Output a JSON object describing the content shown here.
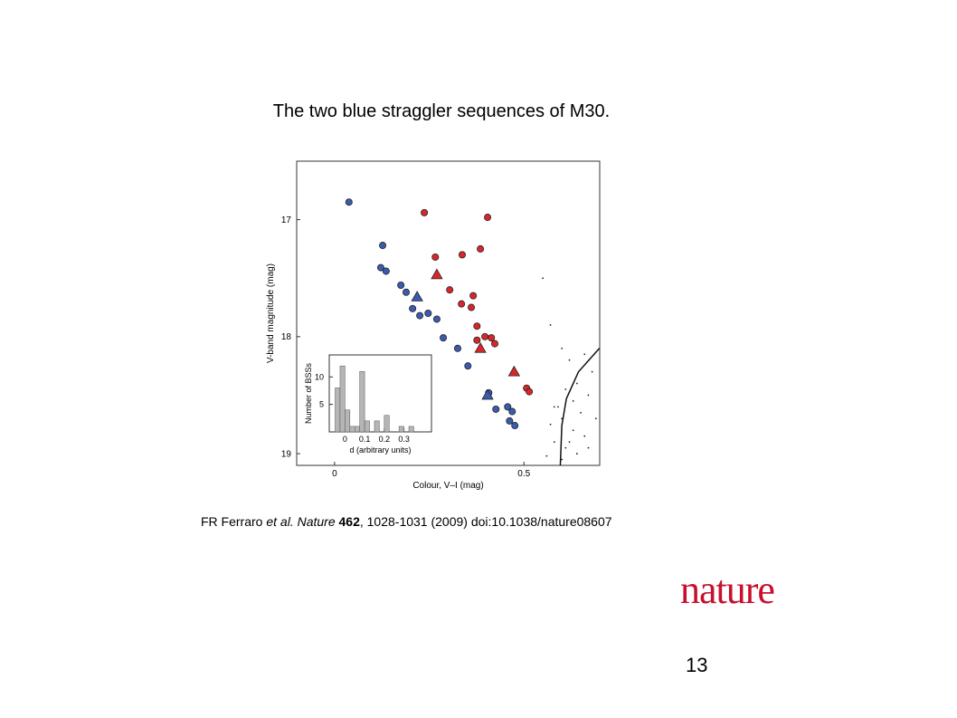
{
  "slide": {
    "title": "The two blue straggler sequences of M30.",
    "citation": [
      "FR Ferraro ",
      "et al. Nature",
      " ",
      "462",
      ", 1028-1031 (2009) doi:10.1038/nature08607"
    ],
    "logo": "nature",
    "page_number": "13"
  },
  "chart_data": [
    {
      "type": "scatter",
      "x_label": "Colour, V–I (mag)",
      "y_label": "V-band magnitude (mag)",
      "xlim": [
        -0.1,
        0.7
      ],
      "ylim": [
        16.5,
        19.1
      ],
      "y_inverted": true,
      "xticks": [
        0,
        0.5
      ],
      "yticks": [
        17,
        18,
        19
      ],
      "series": [
        {
          "color": "#3a5bb0",
          "marker": "circle",
          "x": [
            0.038,
            0.127,
            0.122,
            0.136,
            0.175,
            0.189,
            0.206,
            0.225,
            0.247,
            0.27,
            0.287,
            0.325,
            0.352,
            0.407,
            0.426,
            0.457,
            0.469,
            0.462,
            0.476
          ],
          "values": [
            16.85,
            17.22,
            17.41,
            17.44,
            17.56,
            17.62,
            17.76,
            17.82,
            17.8,
            17.85,
            18.01,
            18.1,
            18.25,
            18.48,
            18.62,
            18.6,
            18.64,
            18.72,
            18.76
          ]
        },
        {
          "color": "#3a5bb0",
          "marker": "triangle",
          "x": [
            0.218,
            0.404
          ],
          "values": [
            17.66,
            18.5
          ]
        },
        {
          "color": "#d9262c",
          "marker": "circle",
          "x": [
            0.237,
            0.404,
            0.266,
            0.337,
            0.385,
            0.304,
            0.335,
            0.366,
            0.361,
            0.376,
            0.376,
            0.397,
            0.414,
            0.423,
            0.507,
            0.514
          ],
          "values": [
            16.94,
            16.98,
            17.32,
            17.3,
            17.25,
            17.6,
            17.72,
            17.65,
            17.75,
            17.91,
            18.03,
            18.0,
            18.01,
            18.06,
            18.44,
            18.47
          ]
        },
        {
          "color": "#d9262c",
          "marker": "triangle",
          "x": [
            0.27,
            0.385,
            0.474
          ],
          "values": [
            17.47,
            18.1,
            18.3
          ]
        },
        {
          "color": "#222222",
          "marker": "dot",
          "x": [
            0.62,
            0.66,
            0.68,
            0.64,
            0.61,
            0.67,
            0.63,
            0.59,
            0.65,
            0.6,
            0.57,
            0.63,
            0.66,
            0.58,
            0.61,
            0.64,
            0.56,
            0.6,
            0.67,
            0.69,
            0.55,
            0.57,
            0.6,
            0.62,
            0.58
          ],
          "values": [
            18.2,
            18.15,
            18.3,
            18.4,
            18.45,
            18.5,
            18.55,
            18.6,
            18.65,
            18.7,
            18.75,
            18.8,
            18.85,
            18.9,
            18.95,
            19.0,
            19.02,
            19.05,
            18.95,
            18.7,
            17.5,
            17.9,
            18.1,
            18.9,
            18.6
          ]
        },
        {
          "color": "#111111",
          "marker": "line",
          "x": [
            0.699,
            0.644,
            0.612,
            0.6,
            0.596
          ],
          "values": [
            18.1,
            18.3,
            18.53,
            18.76,
            19.1
          ]
        }
      ]
    },
    {
      "type": "histogram",
      "x_label": "d (arbitrary units)",
      "y_label": "Number of BSSs",
      "color": "#b5b5b5",
      "bins": [
        -0.05,
        -0.025,
        0,
        0.025,
        0.05,
        0.075,
        0.1,
        0.125,
        0.15,
        0.175,
        0.2,
        0.225,
        0.25,
        0.275,
        0.3,
        0.325,
        0.35
      ],
      "values": [
        8,
        12,
        4,
        1,
        1,
        11,
        2,
        0,
        2,
        0,
        3,
        0,
        0,
        1,
        0,
        1
      ],
      "xlim": [
        -0.08,
        0.44
      ],
      "ylim": [
        0,
        14
      ],
      "xticks": [
        0,
        0.1,
        0.2,
        0.3
      ],
      "yticks": [
        5,
        10
      ]
    }
  ]
}
